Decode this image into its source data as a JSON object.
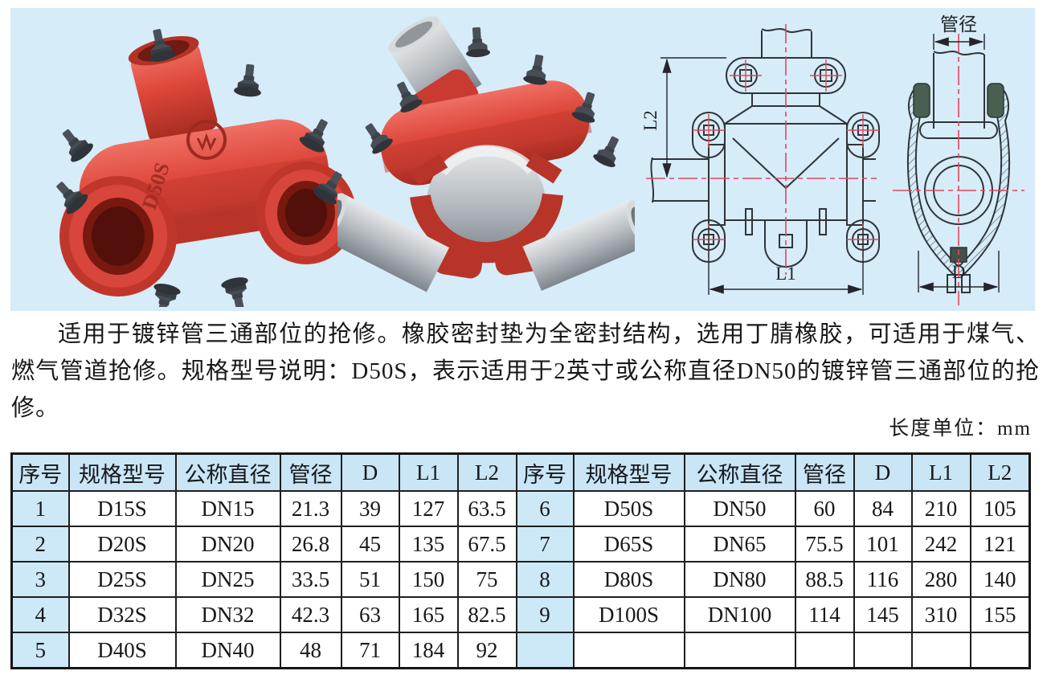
{
  "panel": {
    "photos": {
      "embossed_label": "D50S"
    },
    "drawings": {
      "l1": "L1",
      "l2": "L2",
      "d": "D",
      "pipe_diameter": "管径"
    }
  },
  "description": "适用于镀锌管三通部位的抢修。橡胶密封垫为全密封结构，选用丁腈橡胶，可适用于煤气、燃气管道抢修。规格型号说明：D50S，表示适用于2英寸或公称直径DN50的镀锌管三通部位的抢修。",
  "unit_note": "长度单位：mm",
  "table": {
    "headers": [
      "序号",
      "规格型号",
      "公称直径",
      "管径",
      "D",
      "L1",
      "L2"
    ],
    "left_rows": [
      [
        "1",
        "D15S",
        "DN15",
        "21.3",
        "39",
        "127",
        "63.5"
      ],
      [
        "2",
        "D20S",
        "DN20",
        "26.8",
        "45",
        "135",
        "67.5"
      ],
      [
        "3",
        "D25S",
        "DN25",
        "33.5",
        "51",
        "150",
        "75"
      ],
      [
        "4",
        "D32S",
        "DN32",
        "42.3",
        "63",
        "165",
        "82.5"
      ],
      [
        "5",
        "D40S",
        "DN40",
        "48",
        "71",
        "184",
        "92"
      ]
    ],
    "right_rows": [
      [
        "6",
        "D50S",
        "DN50",
        "60",
        "84",
        "210",
        "105"
      ],
      [
        "7",
        "D65S",
        "DN65",
        "75.5",
        "101",
        "242",
        "121"
      ],
      [
        "8",
        "D80S",
        "DN80",
        "88.5",
        "116",
        "280",
        "140"
      ],
      [
        "9",
        "D100S",
        "DN100",
        "114",
        "145",
        "310",
        "155"
      ],
      [
        "",
        "",
        "",
        "",
        "",
        "",
        ""
      ]
    ]
  },
  "colors": {
    "panel_background": "#d6ecf8",
    "table_header_blue": "#c9e5f6",
    "serial_column_blue": "#cde8f7",
    "border_black": "#1f1f1f",
    "clamp_red": "#dc4538",
    "pipe_gray": "#b6bcc1",
    "centerline_red": "#e0485a"
  }
}
